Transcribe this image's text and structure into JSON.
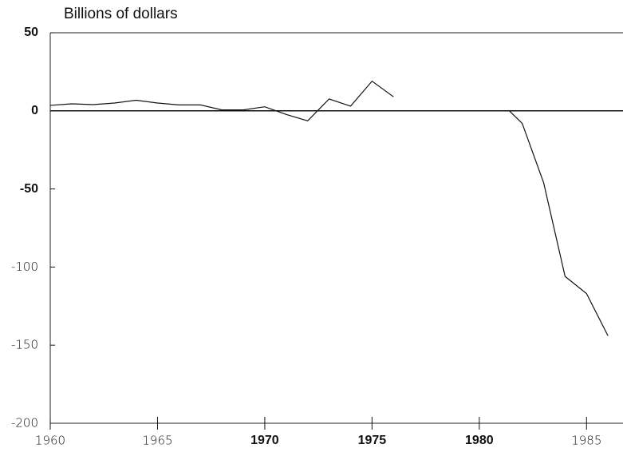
{
  "chart_data": {
    "type": "line",
    "ylabel": "Billions of dollars",
    "x": [
      1960,
      1961,
      1962,
      1963,
      1964,
      1965,
      1966,
      1967,
      1968,
      1969,
      1970,
      1971,
      1972,
      1973,
      1974,
      1975,
      1976,
      1977,
      1981.4,
      1982,
      1983,
      1984,
      1985,
      1986
    ],
    "series": [
      {
        "color": "#111111",
        "values": [
          3.5,
          4.5,
          4,
          5,
          6.8,
          5,
          3.8,
          3.8,
          0.6,
          0.6,
          2.6,
          -2.3,
          -6.4,
          7.6,
          3,
          19,
          9,
          null,
          0,
          -8,
          -46,
          -106,
          -117,
          -144
        ]
      }
    ],
    "xlim": [
      1960,
      1986.7
    ],
    "xticks": [
      1960,
      1965,
      1970,
      1975,
      1980,
      1985
    ],
    "ylim": [
      -200,
      50
    ],
    "yticks": [
      50,
      0,
      -50,
      -100,
      -150,
      -200
    ]
  }
}
